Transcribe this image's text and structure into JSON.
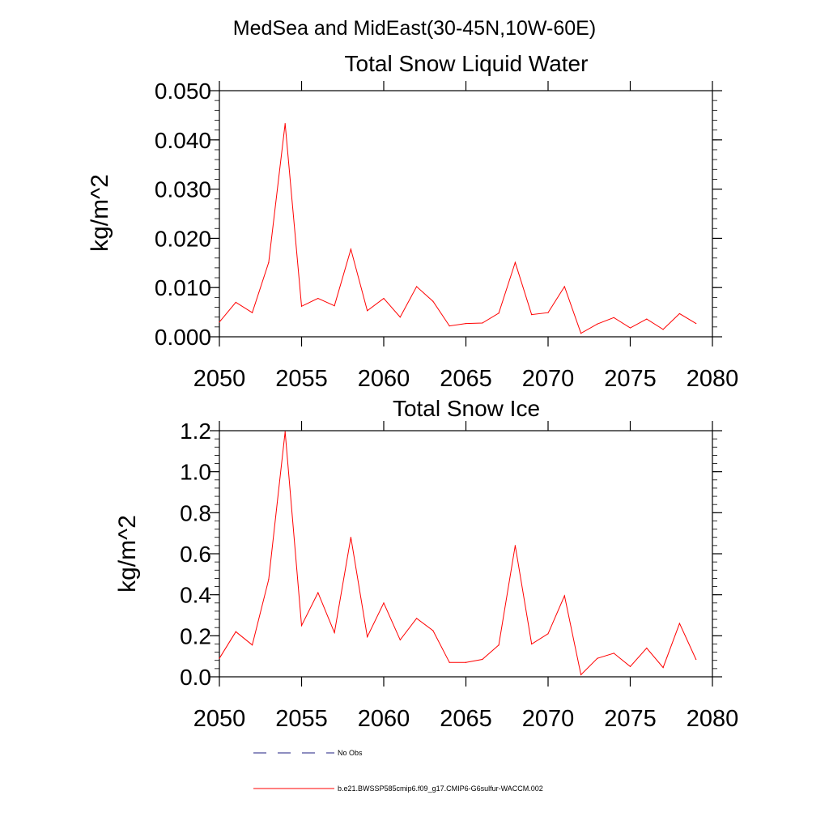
{
  "figure": {
    "title": "MedSea and MidEast(30-45N,10W-60E)"
  },
  "colors": {
    "series": "#ff0000",
    "no_obs": "#1c1c80",
    "axis": "#000000"
  },
  "legend": {
    "items": [
      {
        "label": "No Obs",
        "style": "dashed"
      },
      {
        "label": "b.e21.BWSSP585cmip6.f09_g17.CMIP6-G6sulfur-WACCM.002",
        "style": "solid"
      }
    ]
  },
  "chart_data": [
    {
      "type": "line",
      "title": "Total Snow Liquid Water",
      "xlabel": "",
      "ylabel": "kg/m^2",
      "xlim": [
        2050,
        2080
      ],
      "ylim": [
        0,
        0.05
      ],
      "x_ticks": [
        2050,
        2055,
        2060,
        2065,
        2070,
        2075,
        2080
      ],
      "x_tick_labels": [
        "2050",
        "2055",
        "2060",
        "2065",
        "2070",
        "2075",
        "2080"
      ],
      "y_ticks": [
        0,
        0.01,
        0.02,
        0.03,
        0.04,
        0.05
      ],
      "y_tick_labels": [
        "0.000",
        "0.010",
        "0.020",
        "0.030",
        "0.040",
        "0.050"
      ],
      "grid": false,
      "series": [
        {
          "name": "b.e21.BWSSP585cmip6.f09_g17.CMIP6-G6sulfur-WACCM.002",
          "x": [
            2050,
            2051,
            2052,
            2053,
            2054,
            2055,
            2056,
            2057,
            2058,
            2059,
            2060,
            2061,
            2062,
            2063,
            2064,
            2065,
            2066,
            2067,
            2068,
            2069,
            2070,
            2071,
            2072,
            2073,
            2074,
            2075,
            2076,
            2077,
            2078,
            2079
          ],
          "values": [
            0.003,
            0.007,
            0.0049,
            0.0151,
            0.0433,
            0.0062,
            0.0078,
            0.0063,
            0.0178,
            0.0053,
            0.0078,
            0.004,
            0.0102,
            0.0072,
            0.0022,
            0.0027,
            0.0028,
            0.0048,
            0.0151,
            0.0045,
            0.0049,
            0.0102,
            0.0007,
            0.0026,
            0.0039,
            0.0018,
            0.0036,
            0.0015,
            0.0047,
            0.0027
          ]
        }
      ]
    },
    {
      "type": "line",
      "title": "Total Snow Ice",
      "xlabel": "",
      "ylabel": "kg/m^2",
      "xlim": [
        2050,
        2080
      ],
      "ylim": [
        0,
        1.2
      ],
      "x_ticks": [
        2050,
        2055,
        2060,
        2065,
        2070,
        2075,
        2080
      ],
      "x_tick_labels": [
        "2050",
        "2055",
        "2060",
        "2065",
        "2070",
        "2075",
        "2080"
      ],
      "y_ticks": [
        0,
        0.2,
        0.4,
        0.6,
        0.8,
        1.0,
        1.2
      ],
      "y_tick_labels": [
        "0.0",
        "0.2",
        "0.4",
        "0.6",
        "0.8",
        "1.0",
        "1.2"
      ],
      "grid": false,
      "series": [
        {
          "name": "b.e21.BWSSP585cmip6.f09_g17.CMIP6-G6sulfur-WACCM.002",
          "x": [
            2050,
            2051,
            2052,
            2053,
            2054,
            2055,
            2056,
            2057,
            2058,
            2059,
            2060,
            2061,
            2062,
            2063,
            2064,
            2065,
            2066,
            2067,
            2068,
            2069,
            2070,
            2071,
            2072,
            2073,
            2074,
            2075,
            2076,
            2077,
            2078,
            2079
          ],
          "values": [
            0.09,
            0.22,
            0.155,
            0.475,
            1.195,
            0.25,
            0.41,
            0.215,
            0.68,
            0.195,
            0.36,
            0.18,
            0.285,
            0.225,
            0.07,
            0.07,
            0.085,
            0.155,
            0.64,
            0.16,
            0.21,
            0.395,
            0.01,
            0.09,
            0.115,
            0.05,
            0.14,
            0.045,
            0.26,
            0.085
          ]
        }
      ]
    }
  ]
}
